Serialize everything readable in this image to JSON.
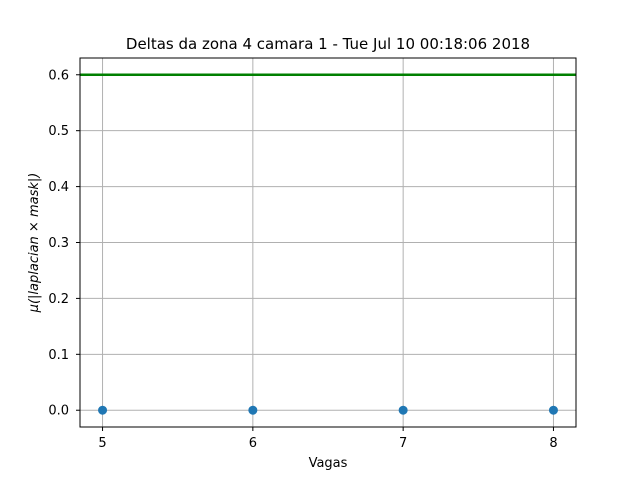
{
  "chart_data": {
    "type": "scatter",
    "title": "Deltas da zona 4 camara 1 - Tue Jul 10 00:18:06 2018",
    "xlabel": "Vagas",
    "ylabel": "μ(|laplacian × mask|)",
    "xlim": [
      4.85,
      8.15
    ],
    "ylim": [
      -0.03,
      0.63
    ],
    "x_ticks": [
      5,
      6,
      7,
      8
    ],
    "y_ticks": [
      0.0,
      0.1,
      0.2,
      0.3,
      0.4,
      0.5,
      0.6
    ],
    "y_tick_labels": [
      "0.0",
      "0.1",
      "0.2",
      "0.3",
      "0.4",
      "0.5",
      "0.6"
    ],
    "grid": true,
    "series": [
      {
        "x": [
          5,
          6,
          7,
          8
        ],
        "values": [
          0.0,
          0.0,
          0.0,
          0.0
        ],
        "color": "#1f77b4",
        "marker": "circle"
      }
    ],
    "hlines": [
      {
        "y": 0.6,
        "color": "#008000"
      }
    ]
  }
}
